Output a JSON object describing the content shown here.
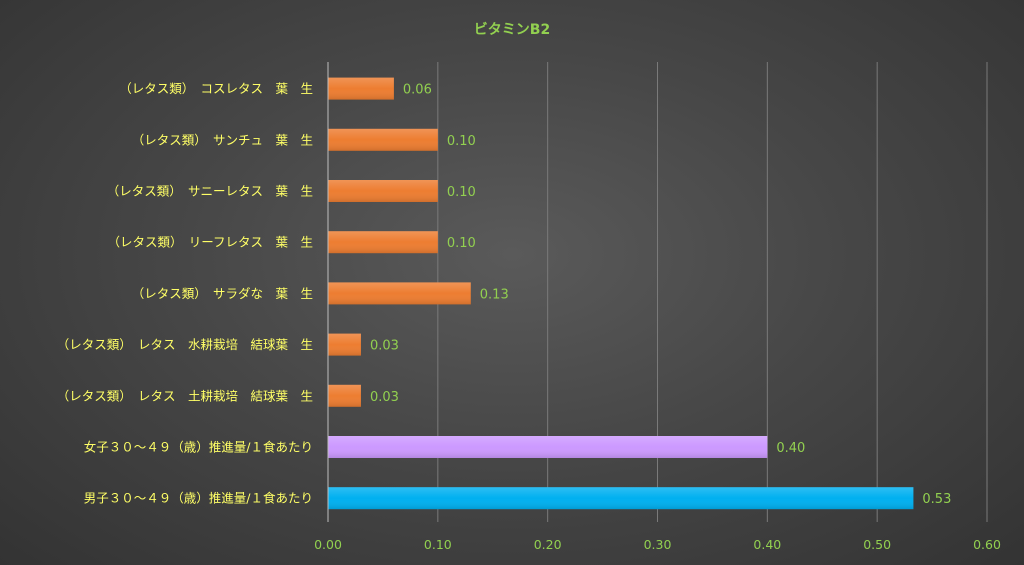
{
  "chart_data": {
    "type": "bar",
    "orientation": "horizontal",
    "title": "ビタミンB2",
    "categories": [
      "（レタス類）　コスレタス　葉　生",
      "（レタス類）　サンチュ　葉　生",
      "（レタス類）　サニーレタス　葉　生",
      "（レタス類）　リーフレタス　葉　生",
      "（レタス類）　サラダな　葉　生",
      "（レタス類）　レタス　水耕栽培　結球葉　生",
      "（レタス類）　レタス　土耕栽培　結球葉　生",
      "女子３０～４９（歳）推進量/１食あたり",
      "男子３０～４９（歳）推進量/１食あたり"
    ],
    "values": [
      0.06,
      0.1,
      0.1,
      0.1,
      0.13,
      0.03,
      0.03,
      0.4,
      0.533
    ],
    "value_labels": [
      "0.06",
      "0.10",
      "0.10",
      "0.10",
      "0.13",
      "0.03",
      "0.03",
      "0.40",
      "0.53"
    ],
    "bar_colors": [
      "#ED7D31",
      "#ED7D31",
      "#ED7D31",
      "#ED7D31",
      "#ED7D31",
      "#ED7D31",
      "#ED7D31",
      "#CC99FF",
      "#00B0F0"
    ],
    "xlim": [
      0,
      0.6
    ],
    "xticks": [
      "0.00",
      "0.10",
      "0.20",
      "0.30",
      "0.40",
      "0.50",
      "0.60"
    ],
    "grid": "vertical",
    "legend": "none",
    "colors": {
      "title": "#92D050",
      "category_label": "#FFFF66",
      "tick_label": "#92D050",
      "data_label": "#92D050",
      "gridline": "#7a7a7a",
      "axis": "#bfbfbf"
    }
  }
}
